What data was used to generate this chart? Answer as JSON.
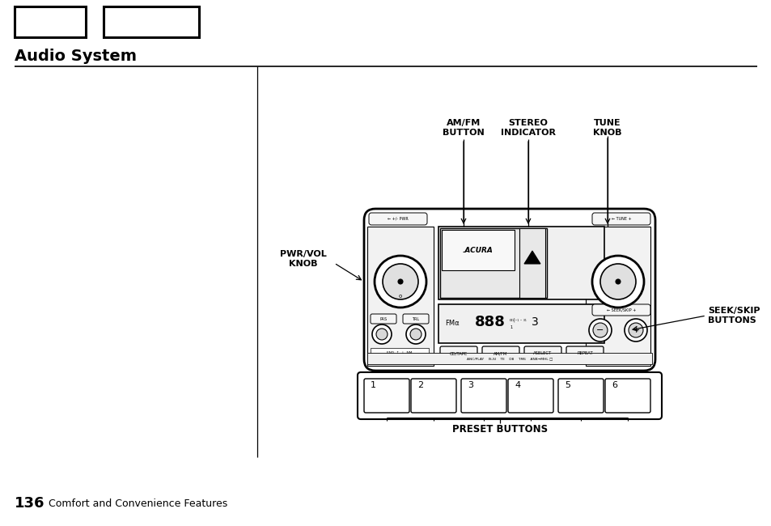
{
  "title": "Audio System",
  "page_number": "136",
  "page_footer": "Comfort and Convenience Features",
  "bg_color": "#ffffff",
  "labels": {
    "amfm": "AM/FM\nBUTTON",
    "stereo": "STEREO\nINDICATOR",
    "tune": "TUNE\nKNOB",
    "pwrvol": "PWR/VOL\nKNOB",
    "seek": "SEEK/SKIP\nBUTTONS",
    "preset": "PRESET BUTTONS"
  }
}
